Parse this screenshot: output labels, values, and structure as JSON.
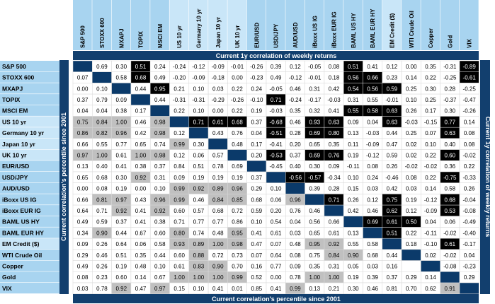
{
  "chart_data": {
    "type": "heatmap",
    "title_top": "Current 1y correlation of weekly returns",
    "title_bottom": "Current correlation's percentile since 2001",
    "title_left": "Current correlation's percentile since 2001",
    "title_right": "Current 1y correlation of weekly returns",
    "row_labels": [
      "S&P 500",
      "STOXX 600",
      "MXAPJ",
      "TOPIX",
      "MSCI EM",
      "US 10 yr",
      "Germany 10 yr",
      "Japan 10 yr",
      "UK 10 yr",
      "EUR/USD",
      "USD/JPY",
      "AUD/USD",
      "iBoxx US IG",
      "iBoxx EUR IG",
      "BAML US HY",
      "BAML EUR HY",
      "EM Credit ($)",
      "WTI Crude Oil",
      "Copper",
      "Gold",
      "VIX"
    ],
    "col_labels": [
      "S&P 500",
      "STOXX 600",
      "MXAPJ",
      "TOPIX",
      "MSCI EM",
      "US 10 yr",
      "Germany 10 yr",
      "Japan 10 yr",
      "UK 10 yr",
      "EUR/USD",
      "USD/JPY",
      "AUD/USD",
      "iBoxx US IG",
      "iBoxx EUR IG",
      "BAML US HY",
      "BAML EUR HY",
      "EM Credit ($)",
      "WTI Crude Oil",
      "Copper",
      "Gold",
      "VIX"
    ],
    "cells": [
      [
        "",
        "0.69",
        "0.30",
        "0.51",
        "0.24",
        "-0.24",
        "-0.12",
        "-0.09",
        "-0.01",
        "-0.26",
        "0.39",
        "0.12",
        "-0.05",
        "0.08",
        "0.51",
        "0.41",
        "0.12",
        "0.00",
        "0.35",
        "-0.31",
        "-0.89"
      ],
      [
        "0.07",
        "",
        "0.58",
        "0.68",
        "0.49",
        "-0.20",
        "-0.09",
        "-0.18",
        "0.00",
        "-0.23",
        "0.49",
        "-0.12",
        "-0.01",
        "0.18",
        "0.56",
        "0.66",
        "0.23",
        "0.14",
        "0.22",
        "-0.25",
        "-0.61"
      ],
      [
        "0.00",
        "0.10",
        "",
        "0.44",
        "0.95",
        "0.21",
        "0.10",
        "0.03",
        "0.22",
        "0.24",
        "-0.05",
        "0.46",
        "0.31",
        "0.42",
        "0.54",
        "0.56",
        "0.59",
        "0.25",
        "0.30",
        "0.28",
        "-0.25"
      ],
      [
        "0.37",
        "0.79",
        "0.09",
        "",
        "0.44",
        "-0.31",
        "-0.31",
        "-0.29",
        "-0.26",
        "-0.10",
        "0.71",
        "-0.24",
        "-0.17",
        "-0.03",
        "0.31",
        "0.55",
        "-0.01",
        "0.10",
        "0.25",
        "-0.37",
        "-0.47"
      ],
      [
        "0.04",
        "0.04",
        "0.38",
        "0.17",
        "",
        "0.22",
        "0.10",
        "0.00",
        "0.22",
        "0.19",
        "-0.03",
        "0.35",
        "0.32",
        "0.41",
        "0.55",
        "0.58",
        "0.63",
        "0.26",
        "0.17",
        "0.30",
        "-0.26"
      ],
      [
        "0.75",
        "0.84",
        "1.00",
        "0.46",
        "0.98",
        "",
        "0.71",
        "0.61",
        "0.68",
        "0.37",
        "-0.68",
        "0.46",
        "0.93",
        "0.63",
        "0.09",
        "0.04",
        "0.63",
        "-0.03",
        "-0.15",
        "0.77",
        "0.14"
      ],
      [
        "0.86",
        "0.82",
        "0.96",
        "0.42",
        "0.98",
        "0.12",
        "",
        "0.43",
        "0.76",
        "0.04",
        "-0.51",
        "0.28",
        "0.69",
        "0.80",
        "0.13",
        "-0.03",
        "0.44",
        "0.25",
        "0.07",
        "0.63",
        "0.08"
      ],
      [
        "0.66",
        "0.55",
        "0.77",
        "0.65",
        "0.74",
        "0.99",
        "0.30",
        "",
        "0.48",
        "0.17",
        "-0.41",
        "0.20",
        "0.65",
        "0.35",
        "0.11",
        "-0.09",
        "0.47",
        "0.02",
        "0.10",
        "0.40",
        "0.08"
      ],
      [
        "0.97",
        "1.00",
        "0.61",
        "1.00",
        "0.98",
        "0.12",
        "0.06",
        "0.57",
        "",
        "0.20",
        "-0.53",
        "0.37",
        "0.69",
        "0.76",
        "0.19",
        "-0.12",
        "0.59",
        "0.02",
        "0.22",
        "0.60",
        "-0.02"
      ],
      [
        "0.13",
        "0.40",
        "0.41",
        "0.38",
        "0.37",
        "0.84",
        "0.51",
        "0.78",
        "0.69",
        "",
        "-0.45",
        "0.40",
        "0.30",
        "0.09",
        "-0.11",
        "0.08",
        "0.26",
        "-0.02",
        "-0.02",
        "0.36",
        "0.22"
      ],
      [
        "0.65",
        "0.68",
        "0.30",
        "0.92",
        "0.31",
        "0.09",
        "0.19",
        "0.19",
        "0.19",
        "0.37",
        "",
        "-0.56",
        "-0.57",
        "-0.34",
        "0.10",
        "0.24",
        "-0.46",
        "0.08",
        "0.22",
        "-0.75",
        "-0.33"
      ],
      [
        "0.00",
        "0.08",
        "0.19",
        "0.00",
        "0.10",
        "0.99",
        "0.92",
        "0.89",
        "0.96",
        "0.29",
        "0.10",
        "",
        "0.39",
        "0.28",
        "0.15",
        "0.03",
        "0.42",
        "0.03",
        "0.14",
        "0.58",
        "0.26"
      ],
      [
        "0.66",
        "0.81",
        "0.97",
        "0.43",
        "0.96",
        "0.99",
        "0.46",
        "0.84",
        "0.85",
        "0.68",
        "0.06",
        "0.96",
        "",
        "0.71",
        "0.26",
        "0.12",
        "0.75",
        "0.19",
        "-0.12",
        "0.68",
        "-0.04"
      ],
      [
        "0.64",
        "0.71",
        "0.92",
        "0.41",
        "0.92",
        "0.60",
        "0.57",
        "0.68",
        "0.72",
        "0.59",
        "0.20",
        "0.76",
        "0.46",
        "",
        "0.42",
        "0.46",
        "0.62",
        "0.12",
        "-0.09",
        "0.53",
        "-0.08"
      ],
      [
        "0.49",
        "0.59",
        "0.37",
        "0.41",
        "0.38",
        "0.71",
        "0.77",
        "0.77",
        "0.86",
        "0.10",
        "0.54",
        "0.04",
        "0.56",
        "0.66",
        "",
        "0.69",
        "0.61",
        "0.50",
        "0.04",
        "0.06",
        "-0.49"
      ],
      [
        "0.34",
        "0.90",
        "0.44",
        "0.67",
        "0.60",
        "0.80",
        "0.74",
        "0.48",
        "0.95",
        "0.41",
        "0.61",
        "0.03",
        "0.65",
        "0.61",
        "0.13",
        "",
        "0.51",
        "0.22",
        "-0.11",
        "-0.02",
        "-0.40"
      ],
      [
        "0.09",
        "0.26",
        "0.64",
        "0.06",
        "0.58",
        "0.93",
        "0.89",
        "1.00",
        "0.98",
        "0.47",
        "0.07",
        "0.48",
        "0.95",
        "0.92",
        "0.55",
        "0.58",
        "",
        "0.18",
        "-0.10",
        "0.61",
        "-0.17"
      ],
      [
        "0.29",
        "0.46",
        "0.51",
        "0.35",
        "0.44",
        "0.60",
        "0.88",
        "0.72",
        "0.73",
        "0.07",
        "0.64",
        "0.08",
        "0.75",
        "0.84",
        "0.90",
        "0.68",
        "0.44",
        "",
        "0.02",
        "-0.02",
        "0.04"
      ],
      [
        "0.49",
        "0.26",
        "0.19",
        "0.48",
        "0.10",
        "0.61",
        "0.83",
        "0.90",
        "0.70",
        "0.16",
        "0.77",
        "0.09",
        "0.35",
        "0.31",
        "0.05",
        "0.03",
        "0.16",
        "",
        "",
        "-0.08",
        "-0.23"
      ],
      [
        "0.08",
        "0.23",
        "0.60",
        "0.14",
        "0.67",
        "1.00",
        "1.00",
        "1.00",
        "0.99",
        "0.52",
        "0.00",
        "0.78",
        "1.00",
        "1.00",
        "0.19",
        "0.39",
        "0.37",
        "0.29",
        "0.14",
        "",
        "0.29"
      ],
      [
        "0.03",
        "0.78",
        "0.92",
        "0.47",
        "0.97",
        "0.15",
        "0.10",
        "0.41",
        "0.01",
        "0.85",
        "0.41",
        "0.99",
        "0.13",
        "0.21",
        "0.30",
        "0.46",
        "0.81",
        "0.70",
        "0.62",
        "0.91",
        ""
      ]
    ],
    "black_cells": [
      [
        0,
        3
      ],
      [
        0,
        14
      ],
      [
        0,
        20
      ],
      [
        1,
        3
      ],
      [
        1,
        14
      ],
      [
        1,
        15
      ],
      [
        1,
        20
      ],
      [
        2,
        4
      ],
      [
        2,
        14
      ],
      [
        2,
        15
      ],
      [
        2,
        16
      ],
      [
        3,
        10
      ],
      [
        4,
        14
      ],
      [
        4,
        15
      ],
      [
        4,
        16
      ],
      [
        5,
        6
      ],
      [
        5,
        7
      ],
      [
        5,
        8
      ],
      [
        5,
        10
      ],
      [
        5,
        12
      ],
      [
        5,
        13
      ],
      [
        5,
        16
      ],
      [
        5,
        19
      ],
      [
        6,
        10
      ],
      [
        6,
        12
      ],
      [
        6,
        13
      ],
      [
        6,
        19
      ],
      [
        8,
        10
      ],
      [
        8,
        12
      ],
      [
        8,
        13
      ],
      [
        8,
        19
      ],
      [
        10,
        11
      ],
      [
        10,
        12
      ],
      [
        10,
        19
      ],
      [
        12,
        13
      ],
      [
        12,
        16
      ],
      [
        12,
        19
      ],
      [
        13,
        16
      ],
      [
        13,
        19
      ],
      [
        14,
        15
      ],
      [
        14,
        16
      ],
      [
        14,
        17
      ],
      [
        15,
        16
      ],
      [
        16,
        19
      ]
    ],
    "gray_cells": [
      [
        5,
        0
      ],
      [
        5,
        1
      ],
      [
        5,
        2
      ],
      [
        5,
        4
      ],
      [
        6,
        0
      ],
      [
        6,
        1
      ],
      [
        6,
        2
      ],
      [
        6,
        4
      ],
      [
        7,
        5
      ],
      [
        8,
        0
      ],
      [
        8,
        1
      ],
      [
        8,
        3
      ],
      [
        8,
        4
      ],
      [
        10,
        3
      ],
      [
        11,
        5
      ],
      [
        11,
        6
      ],
      [
        11,
        7
      ],
      [
        11,
        8
      ],
      [
        12,
        1
      ],
      [
        12,
        2
      ],
      [
        12,
        4
      ],
      [
        12,
        5
      ],
      [
        12,
        7
      ],
      [
        12,
        8
      ],
      [
        12,
        11
      ],
      [
        13,
        2
      ],
      [
        13,
        4
      ],
      [
        15,
        1
      ],
      [
        15,
        5
      ],
      [
        15,
        8
      ],
      [
        16,
        5
      ],
      [
        16,
        6
      ],
      [
        16,
        7
      ],
      [
        16,
        8
      ],
      [
        16,
        12
      ],
      [
        16,
        13
      ],
      [
        17,
        6
      ],
      [
        17,
        14
      ],
      [
        17,
        13
      ],
      [
        18,
        6
      ],
      [
        18,
        7
      ],
      [
        19,
        5
      ],
      [
        19,
        6
      ],
      [
        19,
        7
      ],
      [
        19,
        8
      ],
      [
        19,
        12
      ],
      [
        19,
        13
      ],
      [
        20,
        2
      ],
      [
        20,
        4
      ],
      [
        20,
        11
      ],
      [
        20,
        19
      ]
    ],
    "diagonal_color": "#0b3a6a",
    "header_color": "#a8d4f0",
    "header_highlight_color": "#c9e6f8",
    "title_bar_color": "#123f6e",
    "black_color": "#000000",
    "gray_color": "#c0c0c0",
    "equity_group_color": "#a8d4f0"
  }
}
